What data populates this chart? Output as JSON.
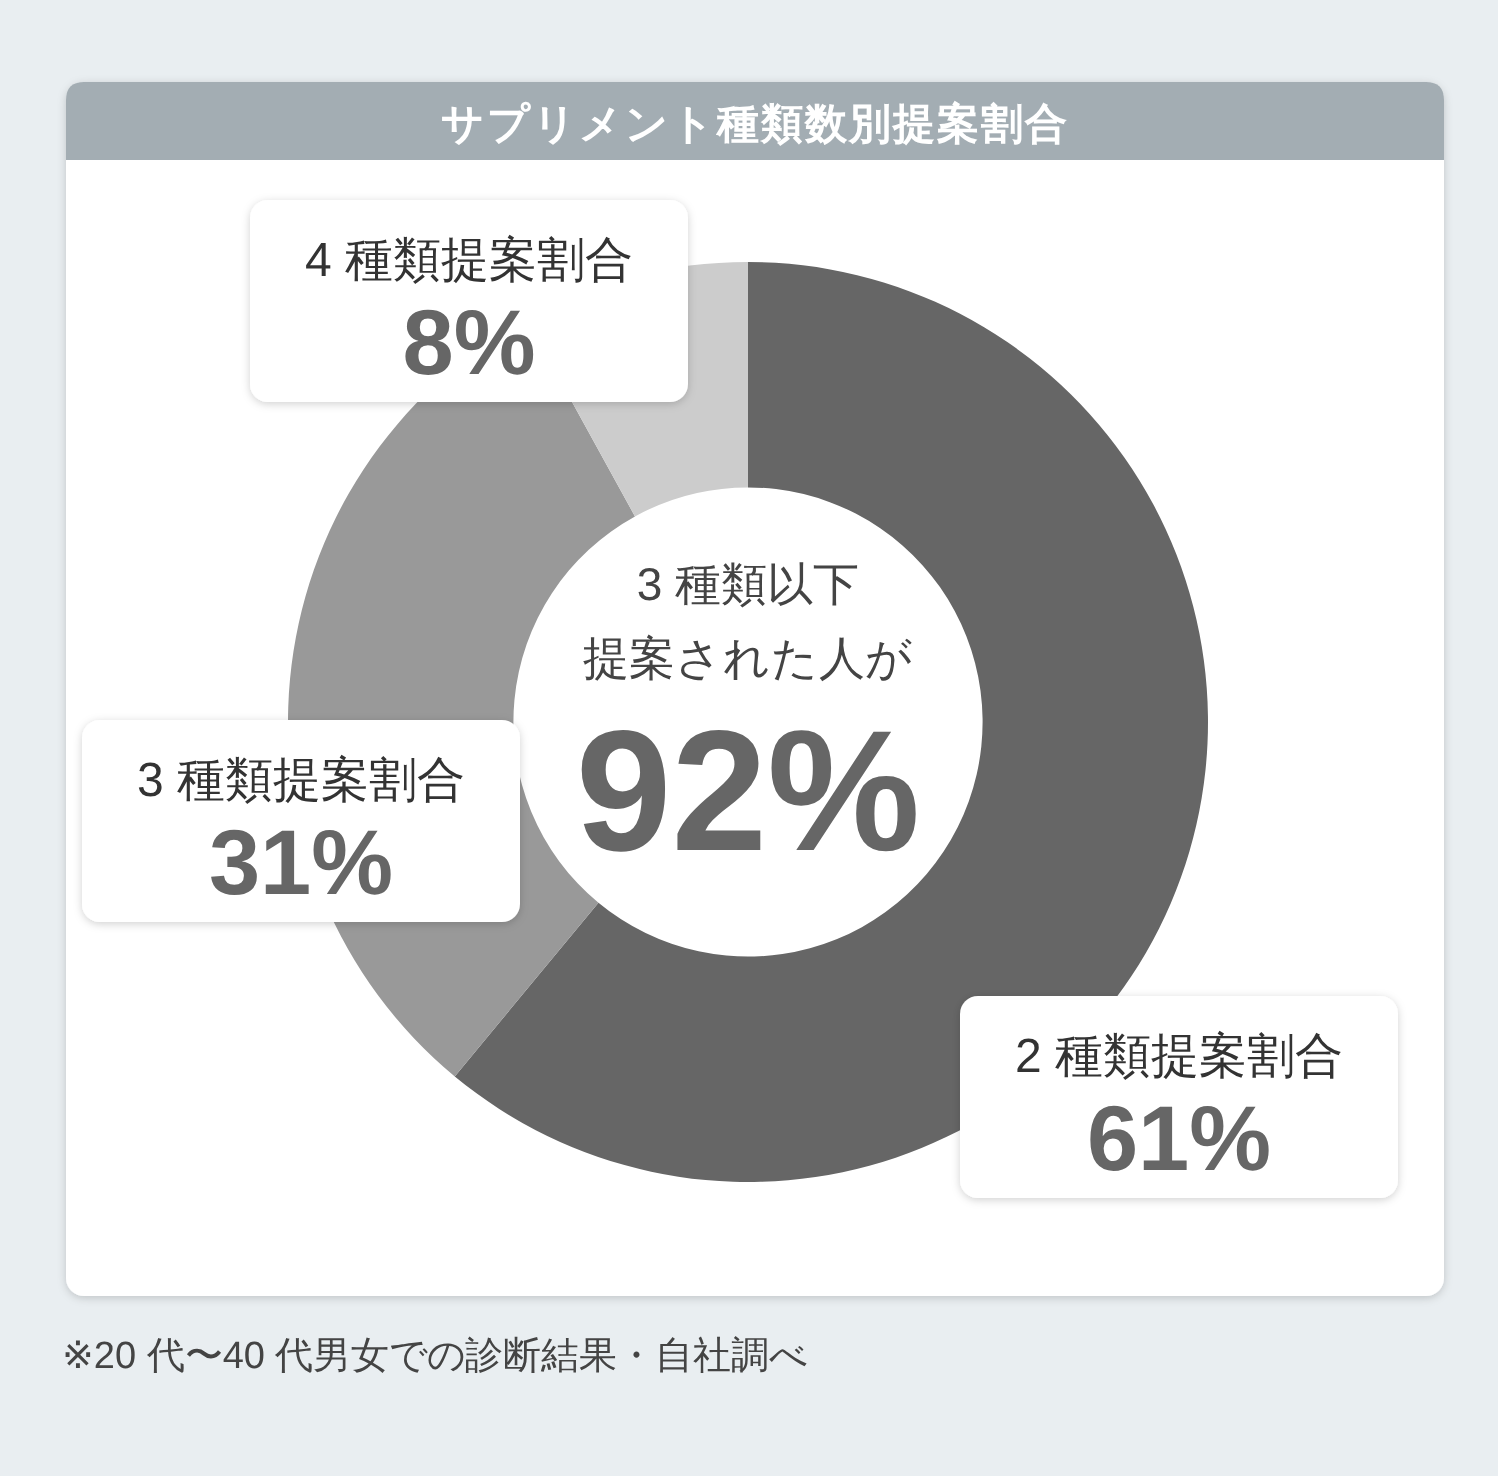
{
  "chart_data": {
    "type": "donut",
    "title": "サプリメント種類数別提案割合",
    "categories": [
      "2 種類提案割合",
      "3 種類提案割合",
      "4 種類提案割合"
    ],
    "values": [
      61,
      31,
      8
    ],
    "colors": [
      "#666666",
      "#999999",
      "#cccccc"
    ],
    "value_labels": [
      "61%",
      "31%",
      "8%"
    ],
    "annotations": [
      "3 種類以下",
      "提案された人が",
      "92%",
      "※20 代〜40 代男女での診断結果・自社調べ"
    ]
  }
}
